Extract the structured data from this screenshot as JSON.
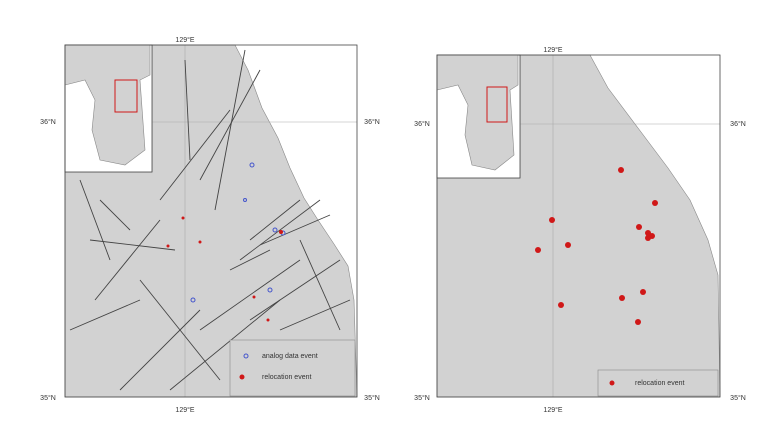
{
  "panels": [
    {
      "labels": {
        "top": "129°E",
        "left": "36°N",
        "right": "36°N",
        "bottom": "129°E",
        "bottom_left": "35°N",
        "bottom_right": "35°N"
      },
      "legend": [
        "analog data event",
        "relocation event"
      ]
    },
    {
      "labels": {
        "top": "129°E",
        "left": "36°N",
        "right": "36°N",
        "bottom": "129°E",
        "bottom_left": "35°N",
        "bottom_right": "35°N"
      },
      "legend": [
        "relocation event"
      ]
    }
  ]
}
